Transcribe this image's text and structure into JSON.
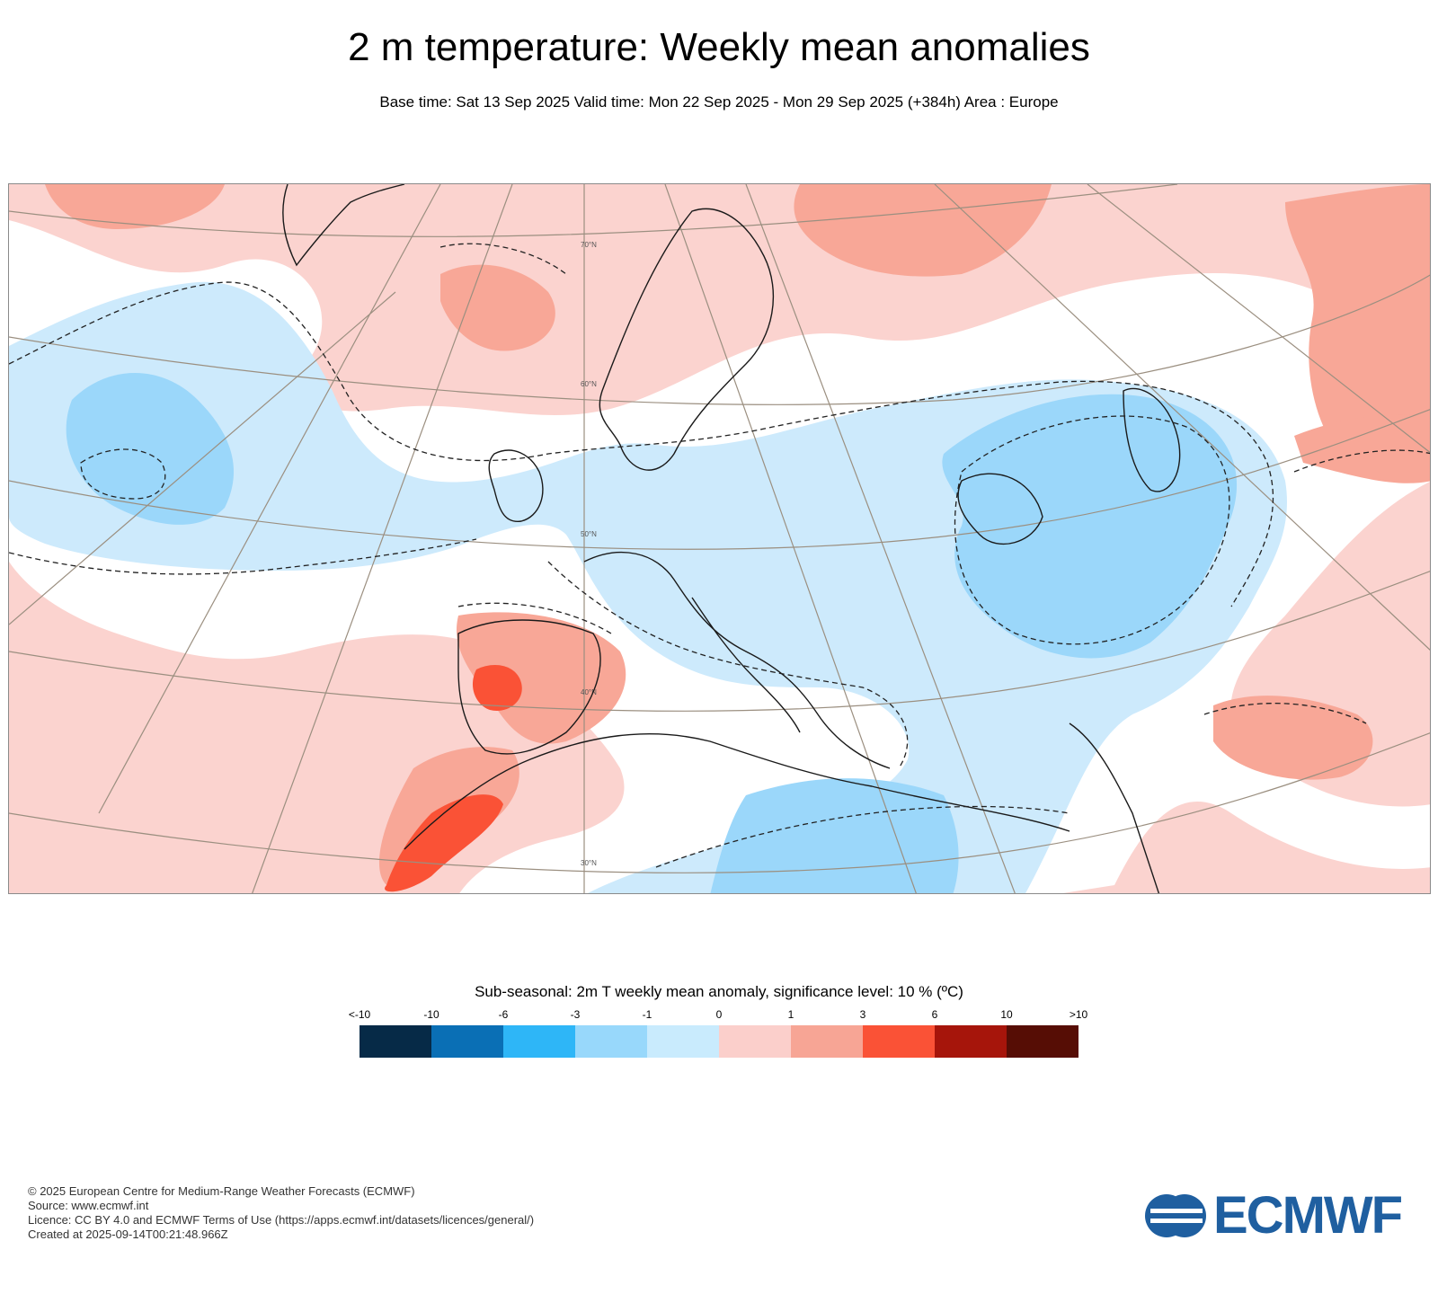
{
  "header": {
    "title": "2 m temperature: Weekly mean anomalies",
    "subtitle": "Base time: Sat 13 Sep 2025 Valid time: Mon 22 Sep 2025 - Mon 29 Sep 2025 (+384h) Area : Europe"
  },
  "map": {
    "area": "Europe",
    "latitude_labels": [
      "70°N",
      "60°N",
      "50°N",
      "40°N",
      "30°N"
    ],
    "colors": {
      "land_outline": "#1a1a1a",
      "graticule": "#9b8f80",
      "significance_contour": "#222222"
    }
  },
  "legend": {
    "title": "Sub-seasonal: 2m T weekly mean anomaly, significance level: 10 % (ºC)",
    "labels": [
      "<-10",
      "-10",
      "-6",
      "-3",
      "-1",
      "0",
      "1",
      "3",
      "6",
      "10",
      ">10"
    ],
    "colors": [
      "#062a47",
      "#0a6fb5",
      "#2eb6f7",
      "#98d8fb",
      "#c9ebfd",
      "#fbcfcb",
      "#f7a595",
      "#fa5236",
      "#a6150b",
      "#560d05"
    ]
  },
  "footer": {
    "line1": "© 2025 European Centre for Medium-Range Weather Forecasts (ECMWF)",
    "line2": "Source: www.ecmwf.int",
    "line3": "Licence: CC BY 4.0 and ECMWF Terms of Use (https://apps.ecmwf.int/datasets/licences/general/)",
    "line4": "Created at 2025-09-14T00:21:48.966Z"
  },
  "logo": {
    "text": "ECMWF",
    "color": "#1f5fa0"
  }
}
